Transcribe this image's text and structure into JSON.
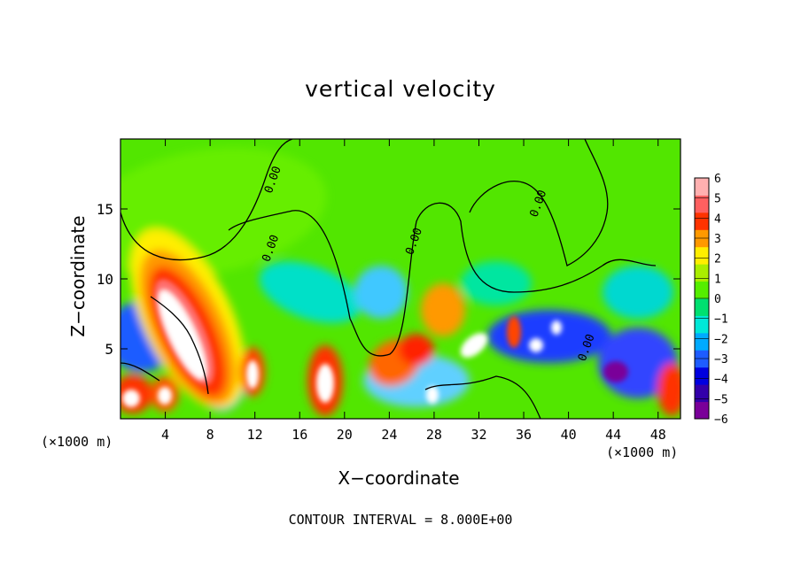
{
  "chart_data": {
    "type": "heatmap",
    "title": "vertical velocity",
    "xlabel": "X−coordinate",
    "ylabel": "Z−coordinate",
    "x_unit_left": "(×1000 m)",
    "x_unit_right": "(×1000 m)",
    "xlim": [
      0,
      50
    ],
    "ylim": [
      0,
      20
    ],
    "x_ticks": [
      4,
      8,
      12,
      16,
      20,
      24,
      28,
      32,
      36,
      40,
      44,
      48
    ],
    "x_tick_labels": [
      "4",
      "8",
      "12",
      "16",
      "20",
      "24",
      "28",
      "32",
      "36",
      "40",
      "44",
      "48"
    ],
    "y_ticks": [
      5,
      10,
      15
    ],
    "y_tick_labels": [
      "5",
      "10",
      "15"
    ],
    "colorbar": {
      "range": [
        -6,
        6
      ],
      "tick_values": [
        6,
        5,
        4,
        3,
        2,
        1,
        0,
        -1,
        -2,
        -3,
        -4,
        -5,
        -6
      ],
      "tick_labels": [
        "6",
        "5",
        "4",
        "3",
        "2",
        "1",
        "0",
        "−1",
        "−2",
        "−3",
        "−4",
        "−5",
        "−6"
      ],
      "colors": [
        "#7a0099",
        "#3300aa",
        "#0000e0",
        "#1e5cff",
        "#00aaff",
        "#00e8d8",
        "#00e070",
        "#55ee00",
        "#aaee00",
        "#ffee00",
        "#ff9900",
        "#ff3300",
        "#ff6060",
        "#ffb0b0"
      ]
    },
    "contour_labels": [
      {
        "x": 13.9,
        "y": 17.0,
        "text": "0.00"
      },
      {
        "x": 13.7,
        "y": 12.1,
        "text": "0.00"
      },
      {
        "x": 26.5,
        "y": 12.6,
        "text": "0.00"
      },
      {
        "x": 37.6,
        "y": 15.3,
        "text": "0.00"
      },
      {
        "x": 41.9,
        "y": 5.0,
        "text": "0.00"
      }
    ],
    "footnote": "CONTOUR INTERVAL =  8.000E+00"
  }
}
